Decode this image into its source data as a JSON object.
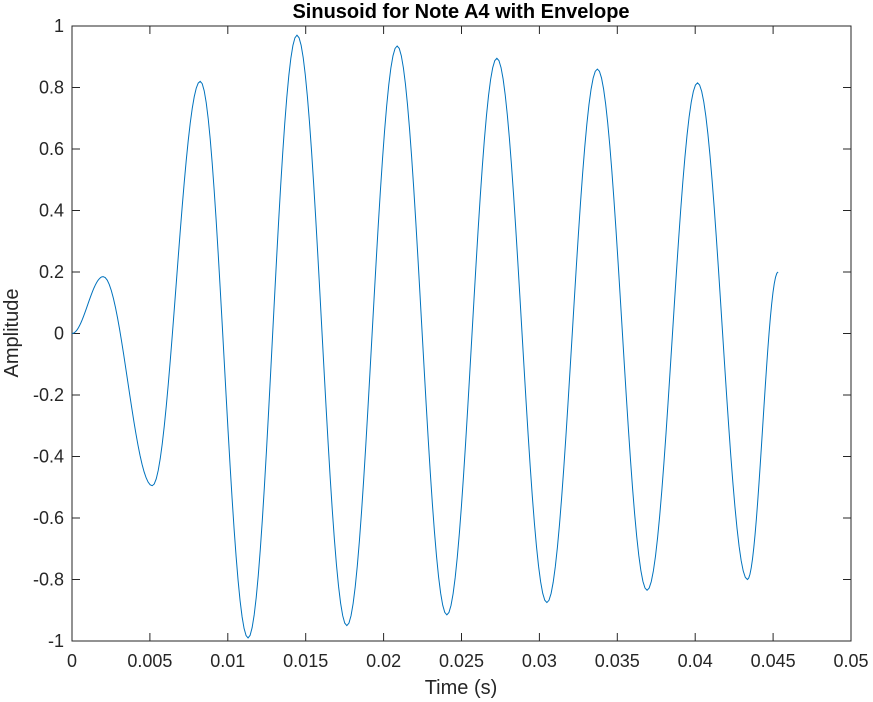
{
  "chart_data": {
    "type": "line",
    "title": "Sinusoid for Note A4 with Envelope",
    "xlabel": "Time (s)",
    "ylabel": "Amplitude",
    "xlim": [
      0,
      0.05
    ],
    "ylim": [
      -1,
      1
    ],
    "grid": false,
    "legend": "none",
    "line_color": "#0072BD",
    "xticks": [
      "0",
      "0.005",
      "0.01",
      "0.015",
      "0.02",
      "0.025",
      "0.03",
      "0.035",
      "0.04",
      "0.045",
      "0.05"
    ],
    "yticks": [
      "-1",
      "-0.8",
      "-0.6",
      "-0.4",
      "-0.2",
      "0",
      "0.2",
      "0.4",
      "0.6",
      "0.8",
      "1"
    ],
    "series": [
      {
        "x": [
          0,
          0.002,
          0.00515,
          0.00823,
          0.0113,
          0.01444,
          0.01764,
          0.02087,
          0.02406,
          0.02727,
          0.03048,
          0.03372,
          0.03691,
          0.04015,
          0.04335,
          0.04532
        ],
        "values": [
          0,
          0.185,
          -0.495,
          0.82,
          -0.99,
          0.97,
          -0.95,
          0.935,
          -0.915,
          0.895,
          -0.875,
          0.86,
          -0.835,
          0.815,
          -0.8,
          0.2
        ]
      }
    ]
  }
}
